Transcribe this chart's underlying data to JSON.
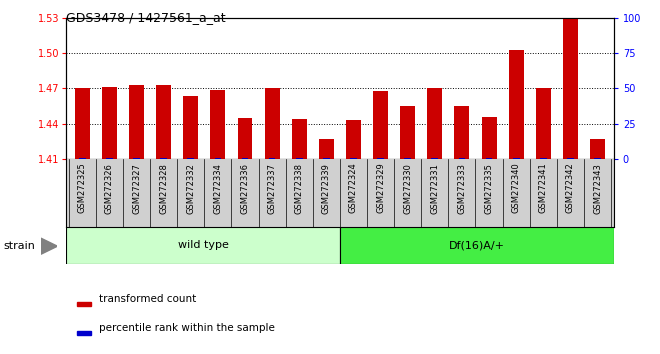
{
  "title": "GDS3478 / 1427561_a_at",
  "categories": [
    "GSM272325",
    "GSM272326",
    "GSM272327",
    "GSM272328",
    "GSM272332",
    "GSM272334",
    "GSM272336",
    "GSM272337",
    "GSM272338",
    "GSM272339",
    "GSM272324",
    "GSM272329",
    "GSM272330",
    "GSM272331",
    "GSM272333",
    "GSM272335",
    "GSM272340",
    "GSM272341",
    "GSM272342",
    "GSM272343"
  ],
  "red_values": [
    1.47,
    1.471,
    1.473,
    1.473,
    1.464,
    1.469,
    1.445,
    1.47,
    1.444,
    1.427,
    1.443,
    1.468,
    1.455,
    1.47,
    1.455,
    1.446,
    1.503,
    1.47,
    1.53,
    1.427
  ],
  "group_labels": [
    "wild type",
    "Df(16)A/+"
  ],
  "group_sizes": [
    10,
    10
  ],
  "group_colors_light": "#ccffcc",
  "group_colors_dark": "#44ee44",
  "ylim_left": [
    1.41,
    1.53
  ],
  "ylim_right": [
    0,
    100
  ],
  "yticks_left": [
    1.41,
    1.44,
    1.47,
    1.5,
    1.53
  ],
  "yticks_right": [
    0,
    25,
    50,
    75,
    100
  ],
  "bar_color_red": "#cc0000",
  "bar_color_blue": "#0000cc",
  "plot_bg": "#ffffff",
  "tick_bg": "#d0d0d0",
  "legend_red": "transformed count",
  "legend_blue": "percentile rank within the sample",
  "strain_label": "strain"
}
